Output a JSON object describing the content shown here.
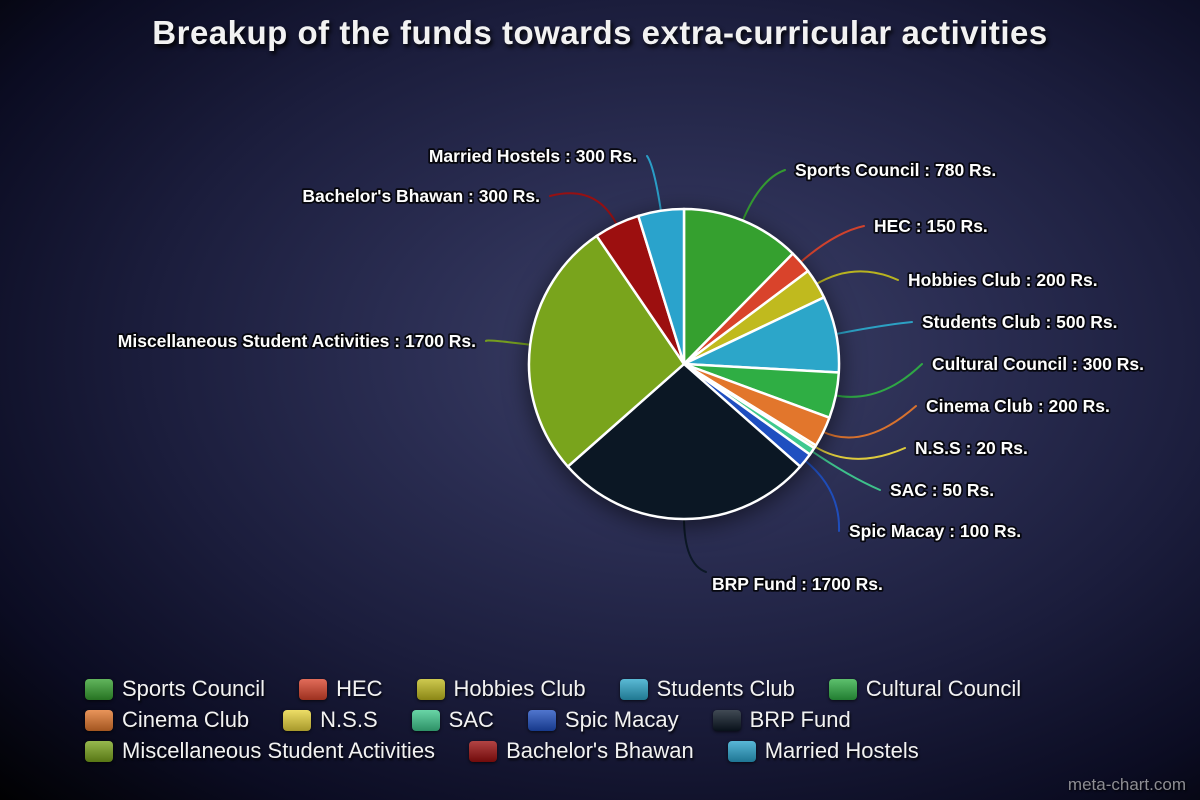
{
  "page": {
    "title": "Breakup of the funds towards extra-curricular activities",
    "watermark": "meta-chart.com"
  },
  "chart_data": {
    "type": "pie",
    "title": "Breakup of the funds towards extra-curricular activities",
    "unit": "Rs.",
    "total": 6300,
    "start_angle_deg": 0,
    "direction": "clockwise",
    "legend_position": "bottom",
    "categories": [
      "Sports Council",
      "HEC",
      "Hobbies Club",
      "Students Club",
      "Cultural Council",
      "Cinema Club",
      "N.S.S",
      "SAC",
      "Spic Macay",
      "BRP Fund",
      "Miscellaneous Student Activities",
      "Bachelor's Bhawan",
      "Married Hostels"
    ],
    "values": [
      780,
      150,
      200,
      500,
      300,
      200,
      20,
      50,
      100,
      1700,
      1700,
      300,
      300
    ],
    "colors": [
      "#35a02f",
      "#d9432b",
      "#c0ba1e",
      "#2ca6c9",
      "#2fae44",
      "#e2762c",
      "#e8d43c",
      "#3fc98e",
      "#1f4fc0",
      "#0b1724",
      "#79a41c",
      "#9c0f0f",
      "#2aa3cc"
    ],
    "callouts": [
      "Sports Council : 780 Rs.",
      "HEC : 150 Rs.",
      "Hobbies Club : 200 Rs.",
      "Students Club : 500 Rs.",
      "Cultural Council : 300 Rs.",
      "Cinema Club : 200 Rs.",
      "N.S.S : 20 Rs.",
      "SAC : 50 Rs.",
      "Spic Macay : 100 Rs.",
      "BRP Fund : 1700 Rs.",
      "Miscellaneous Student Activities : 1700 Rs.",
      "Bachelor's Bhawan : 300 Rs.",
      "Married Hostels : 300 Rs."
    ]
  }
}
